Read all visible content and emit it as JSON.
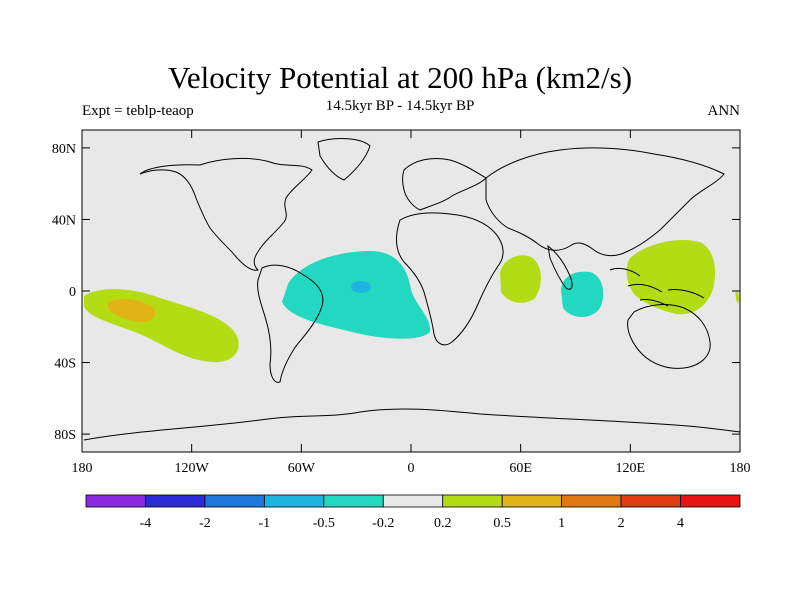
{
  "title": "Velocity Potential at 200 hPa (km2/s)",
  "subtitle": "14.5kyr BP - 14.5kyr BP",
  "left_label": "Expt = teblp-teaop",
  "right_label": "ANN",
  "y_ticks": [
    "80N",
    "40N",
    "0",
    "40S",
    "80S"
  ],
  "x_ticks": [
    "180",
    "120W",
    "60W",
    "0",
    "60E",
    "120E",
    "180"
  ],
  "colorbar": {
    "colors": [
      "#8a2be2",
      "#2b2bd8",
      "#1e78d8",
      "#1eb4e0",
      "#22d8c0",
      "#e8e8e8",
      "#b4dc14",
      "#e0b414",
      "#e07814",
      "#e03c14",
      "#e81414"
    ],
    "labels": [
      "-4",
      "-2",
      "-1",
      "-0.5",
      "-0.2",
      "0.2",
      "0.5",
      "1",
      "2",
      "4"
    ]
  },
  "colors": {
    "ocean": "#e8e8e8",
    "positive_low": "#b4dc14",
    "positive_mid": "#e0b414",
    "negative_low": "#22d8c0",
    "negative_mid": "#1eb4e0"
  }
}
